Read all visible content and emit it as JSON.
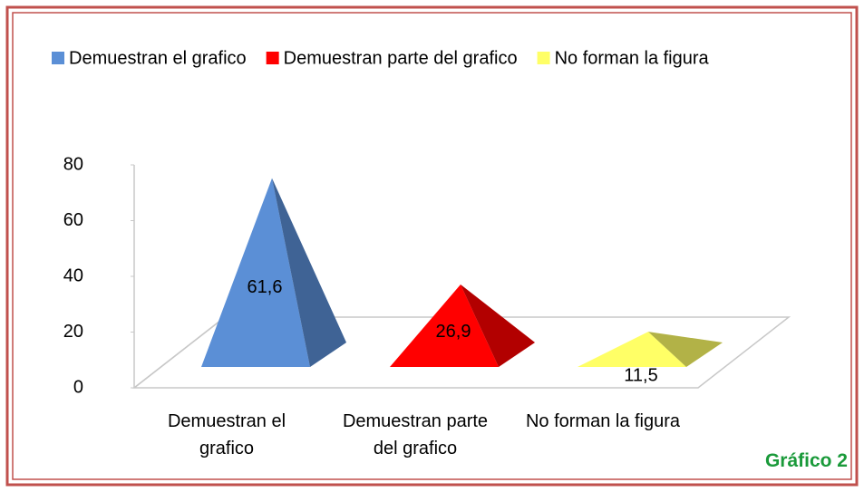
{
  "chart_data": {
    "type": "pyramid",
    "categories": [
      "Demuestran el grafico",
      "Demuestran parte del grafico",
      "No forman la figura"
    ],
    "values": [
      61.6,
      26.9,
      11.5
    ],
    "value_labels": [
      "61,6",
      "26,9",
      "11,5"
    ],
    "colors": [
      "#5b8fd6",
      "#ff0000",
      "#ffff66"
    ],
    "ylim": [
      0,
      80
    ],
    "yticks": [
      0,
      20,
      40,
      60,
      80
    ],
    "legend": "top",
    "annotation": "Gráfico 2"
  }
}
